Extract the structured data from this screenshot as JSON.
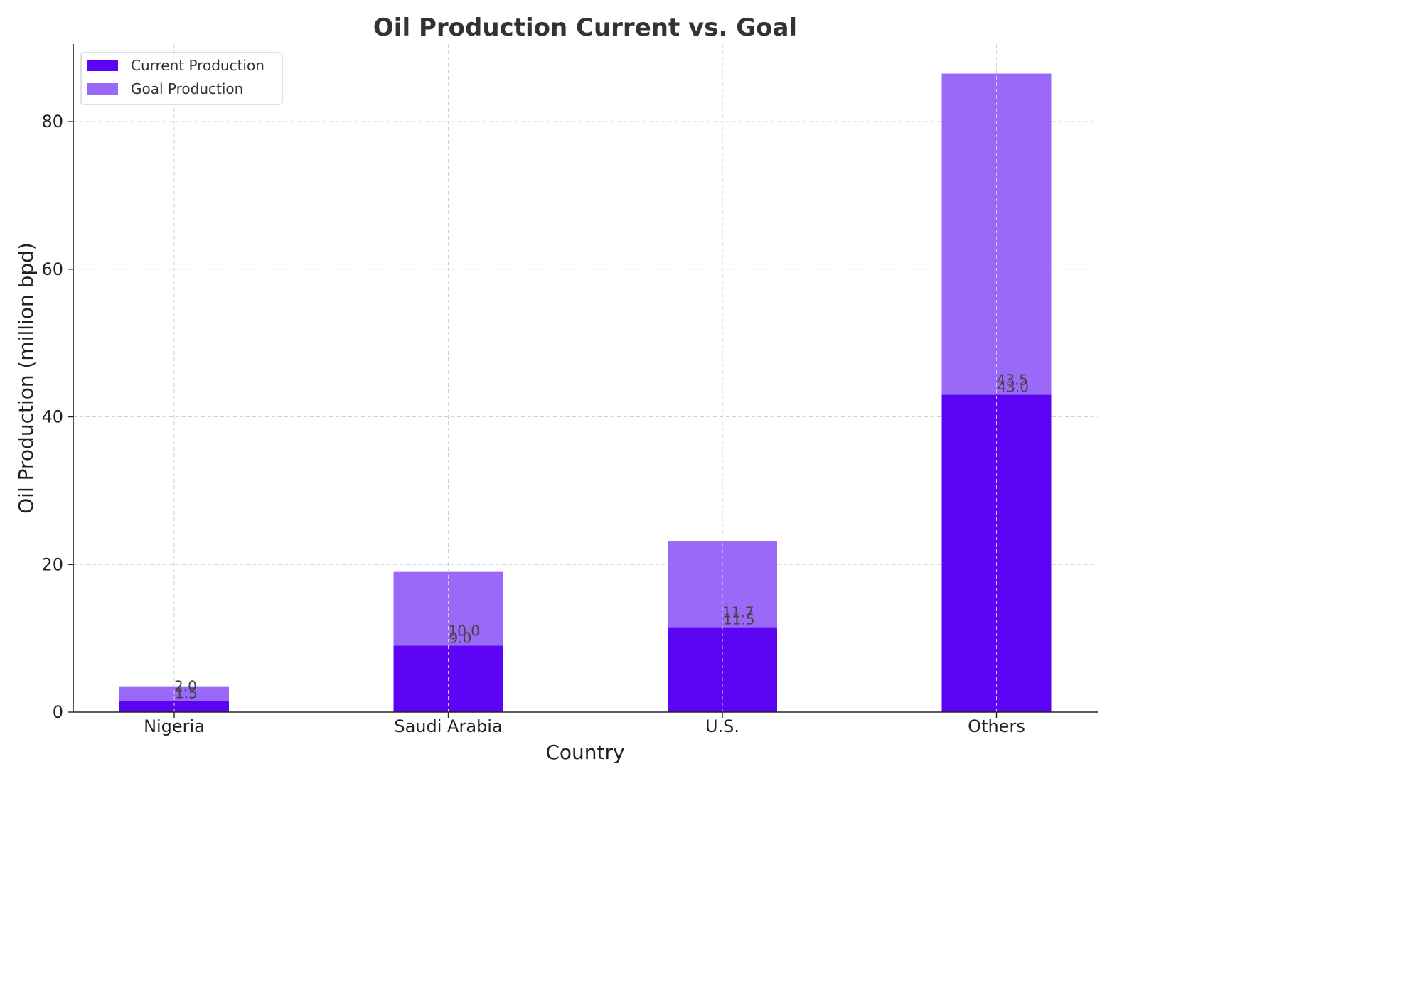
{
  "chart_data": {
    "type": "bar",
    "title": "Oil Production Current vs. Goal",
    "xlabel": "Country",
    "ylabel": "Oil Production (million bpd)",
    "categories": [
      "Nigeria",
      "Saudi Arabia",
      "U.S.",
      "Others"
    ],
    "series": [
      {
        "name": "Current Production",
        "values": [
          1.5,
          9.0,
          11.5,
          43.0
        ],
        "color": "#5c05f5"
      },
      {
        "name": "Goal Production",
        "values": [
          2.0,
          10.0,
          11.7,
          43.5
        ],
        "color": "#9b69f8"
      }
    ],
    "stacked": true,
    "ylim": [
      0,
      90.5
    ],
    "yticks": [
      0,
      20,
      40,
      60,
      80
    ],
    "grid": true,
    "legend_position": "top-left"
  }
}
